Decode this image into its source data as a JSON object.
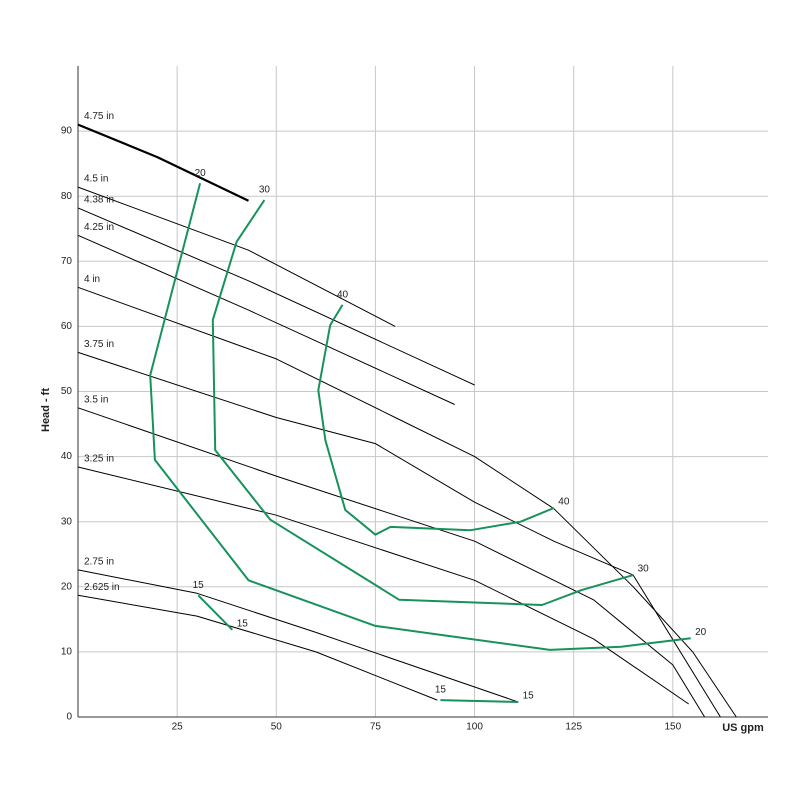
{
  "chart_data": {
    "type": "line",
    "x_label": "US gpm",
    "y_label": "Head - ft",
    "xlim": [
      0,
      174
    ],
    "ylim": [
      0,
      100
    ],
    "xticks": [
      25,
      50,
      75,
      100,
      125,
      150
    ],
    "yticks": [
      0,
      10,
      20,
      30,
      40,
      50,
      60,
      70,
      80,
      90
    ],
    "grid": true,
    "series": [
      {
        "name": "4.75 in",
        "kind": "impeller",
        "color": "#000000",
        "line_width": 2.2,
        "x": [
          0,
          20,
          43
        ],
        "values": [
          91,
          86,
          79.3
        ]
      },
      {
        "name": "4.5 in",
        "kind": "impeller",
        "color": "#000000",
        "x": [
          0,
          43,
          80
        ],
        "values": [
          81.4,
          71.7,
          60
        ]
      },
      {
        "name": "4.38 in",
        "kind": "impeller",
        "color": "#000000",
        "x": [
          0,
          43,
          100
        ],
        "values": [
          78.2,
          67,
          51
        ]
      },
      {
        "name": "4.25 in",
        "kind": "impeller",
        "color": "#000000",
        "x": [
          0,
          43,
          95
        ],
        "values": [
          74,
          62.5,
          48
        ]
      },
      {
        "name": "4 in",
        "kind": "impeller",
        "color": "#000000",
        "x": [
          0,
          50,
          80,
          100,
          120,
          140,
          155,
          166
        ],
        "values": [
          66,
          55,
          46,
          40,
          32,
          20,
          10,
          0
        ]
      },
      {
        "name": "3.75 in",
        "kind": "impeller",
        "color": "#000000",
        "x": [
          0,
          50,
          75,
          100,
          120,
          140,
          162
        ],
        "values": [
          56,
          46,
          42,
          33,
          27,
          21.8,
          0
        ]
      },
      {
        "name": "3.5 in",
        "kind": "impeller",
        "color": "#000000",
        "x": [
          0,
          50,
          100,
          130,
          150,
          158
        ],
        "values": [
          47.5,
          37,
          27,
          18,
          8,
          0
        ]
      },
      {
        "name": "3.25 in",
        "kind": "impeller",
        "color": "#000000",
        "x": [
          0,
          50,
          100,
          130,
          154
        ],
        "values": [
          38.4,
          31,
          21,
          12,
          2
        ]
      },
      {
        "name": "2.75 in",
        "kind": "impeller",
        "color": "#000000",
        "x": [
          0,
          30,
          60,
          111
        ],
        "values": [
          22.6,
          19,
          13,
          2.3
        ]
      },
      {
        "name": "2.625 in",
        "kind": "impeller",
        "color": "#000000",
        "x": [
          0,
          30,
          60,
          90.6
        ],
        "values": [
          18.7,
          15.5,
          10,
          2.6
        ]
      },
      {
        "name": "20",
        "kind": "efficiency",
        "color": "#17925a",
        "x": [
          30.8,
          18.2,
          19.4,
          43,
          75,
          119,
          137,
          154.5
        ],
        "values": [
          82,
          52.5,
          39.5,
          21,
          14,
          10.3,
          10.8,
          12.1
        ]
      },
      {
        "name": "30",
        "kind": "efficiency",
        "color": "#17925a",
        "x": [
          47,
          40,
          34,
          34.6,
          48.5,
          81,
          117,
          127,
          140
        ],
        "values": [
          79.4,
          73,
          61,
          41,
          30.3,
          18,
          17.2,
          19.5,
          21.8
        ]
      },
      {
        "name": "40",
        "kind": "efficiency",
        "color": "#17925a",
        "x": [
          66.7,
          63.6,
          60.6,
          62.4,
          67.4,
          75,
          78.8,
          99,
          111.6,
          120
        ],
        "values": [
          63.3,
          60.2,
          50.2,
          42.5,
          31.8,
          28,
          29.2,
          28.7,
          30,
          32.1
        ]
      },
      {
        "name": "15",
        "kind": "efficiency",
        "color": "#17925a",
        "x": [
          30.3,
          38.9
        ],
        "values": [
          18.7,
          13.4
        ]
      },
      {
        "name": "15",
        "kind": "efficiency",
        "color": "#17925a",
        "x": [
          91.4,
          111
        ],
        "values": [
          2.6,
          2.3
        ]
      }
    ]
  }
}
